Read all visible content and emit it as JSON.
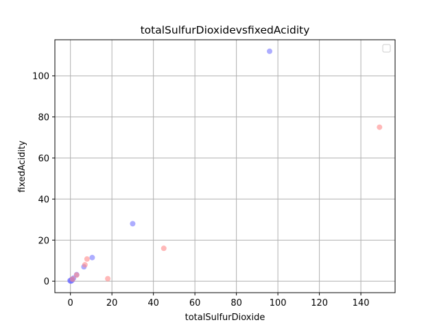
{
  "chart_data": {
    "type": "scatter",
    "title": "totalSulfurDioxidevsfixedAcidity",
    "xlabel": "totalSulfurDioxide",
    "ylabel": "fixedAcidity",
    "xlim": [
      -7.5,
      156.5
    ],
    "ylim": [
      -5.6,
      117.6
    ],
    "xticks": [
      0,
      20,
      40,
      60,
      80,
      100,
      120,
      140
    ],
    "yticks": [
      0,
      20,
      40,
      60,
      80,
      100
    ],
    "grid": true,
    "legend": "top-right",
    "series": [
      {
        "color": "#7777ff",
        "points": [
          [
            96,
            112
          ],
          [
            30,
            28
          ],
          [
            10.5,
            11.5
          ],
          [
            6.5,
            7
          ],
          [
            3,
            3.2
          ],
          [
            1.5,
            1.5
          ],
          [
            1,
            1
          ],
          [
            0.5,
            0.7
          ],
          [
            0.2,
            0.4
          ],
          [
            0,
            0.1
          ],
          [
            -0.2,
            0.3
          ],
          [
            0.3,
            0
          ],
          [
            0.8,
            0.4
          ]
        ]
      },
      {
        "color": "#ff8888",
        "points": [
          [
            149,
            75
          ],
          [
            45,
            16
          ],
          [
            18,
            1.2
          ],
          [
            8,
            10.8
          ],
          [
            7,
            8
          ],
          [
            3,
            3
          ],
          [
            1,
            1
          ]
        ]
      }
    ]
  }
}
